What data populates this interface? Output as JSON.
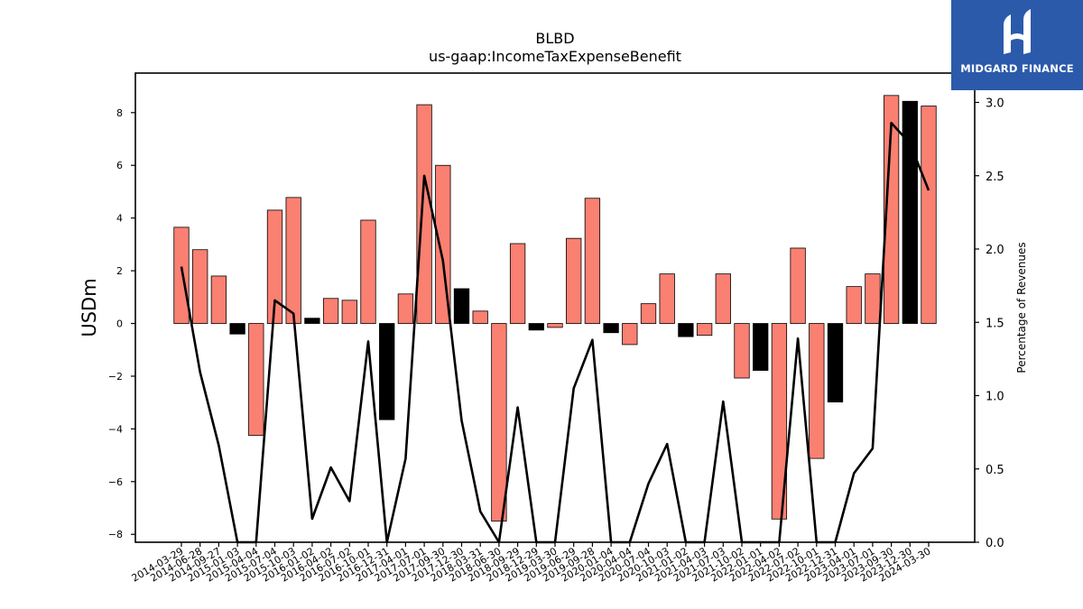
{
  "logo": {
    "text": "MIDGARD FINANCE",
    "bg_color": "#2b5aab"
  },
  "chart_data": {
    "type": "bar",
    "title": "BLBD",
    "subtitle": "us-gaap:IncomeTaxExpenseBenefit",
    "ylabel": "USDm",
    "y2label": "Percentage of Revenues",
    "ylim": [
      -8.3,
      9.5
    ],
    "y2lim": [
      0.0,
      3.2
    ],
    "yticks": [
      -8,
      -6,
      -4,
      -2,
      0,
      2,
      4,
      6,
      8
    ],
    "y2ticks": [
      0.0,
      0.5,
      1.0,
      1.5,
      2.0,
      2.5,
      3.0
    ],
    "categories": [
      "2014-03-29",
      "2014-06-28",
      "2014-09-27",
      "2015-01-03",
      "2015-04-04",
      "2015-07-04",
      "2015-10-03",
      "2016-01-02",
      "2016-04-02",
      "2016-07-02",
      "2016-10-01",
      "2016-12-31",
      "2017-04-01",
      "2017-07-01",
      "2017-09-30",
      "2017-12-30",
      "2018-03-31",
      "2018-06-30",
      "2018-09-29",
      "2018-12-29",
      "2019-03-30",
      "2019-06-29",
      "2019-09-28",
      "2020-01-04",
      "2020-04-04",
      "2020-07-04",
      "2020-10-03",
      "2021-01-02",
      "2021-04-03",
      "2021-07-03",
      "2021-10-02",
      "2022-01-01",
      "2022-04-02",
      "2022-07-02",
      "2022-10-01",
      "2022-12-31",
      "2023-04-01",
      "2023-07-01",
      "2023-09-30",
      "2023-12-30",
      "2024-03-30"
    ],
    "values": [
      3.65,
      2.8,
      1.8,
      -0.4,
      -4.25,
      4.3,
      4.78,
      0.2,
      0.95,
      0.88,
      3.92,
      -3.65,
      1.12,
      8.3,
      6.0,
      1.32,
      0.47,
      -7.5,
      3.03,
      -0.25,
      -0.15,
      3.23,
      4.75,
      -0.35,
      -0.8,
      0.75,
      1.88,
      -0.5,
      -0.45,
      1.88,
      -2.07,
      -1.78,
      -7.42,
      2.86,
      -5.12,
      -2.98,
      1.4,
      1.88,
      8.65,
      8.43,
      8.25
    ],
    "bar_colors": [
      "salmon",
      "salmon",
      "salmon",
      "black",
      "salmon",
      "salmon",
      "salmon",
      "black",
      "salmon",
      "salmon",
      "salmon",
      "black",
      "salmon",
      "salmon",
      "salmon",
      "black",
      "salmon",
      "salmon",
      "salmon",
      "black",
      "salmon",
      "salmon",
      "salmon",
      "black",
      "salmon",
      "salmon",
      "salmon",
      "black",
      "salmon",
      "salmon",
      "salmon",
      "black",
      "salmon",
      "salmon",
      "salmon",
      "black",
      "salmon",
      "salmon",
      "salmon",
      "black",
      "salmon"
    ],
    "line_values": [
      1.88,
      1.16,
      0.66,
      0.0,
      0.0,
      1.65,
      1.56,
      0.16,
      0.51,
      0.28,
      1.37,
      0.0,
      0.57,
      2.5,
      1.92,
      0.83,
      0.21,
      0.0,
      0.92,
      0.0,
      0.0,
      1.05,
      1.38,
      0.0,
      0.0,
      0.4,
      0.67,
      0.0,
      0.0,
      0.96,
      0.0,
      0.0,
      0.0,
      1.39,
      0.0,
      0.0,
      0.47,
      0.64,
      2.86,
      2.72,
      2.4
    ],
    "colors": {
      "salmon": "#fa8072",
      "black": "#000000",
      "line": "#000000"
    },
    "grid": false
  }
}
